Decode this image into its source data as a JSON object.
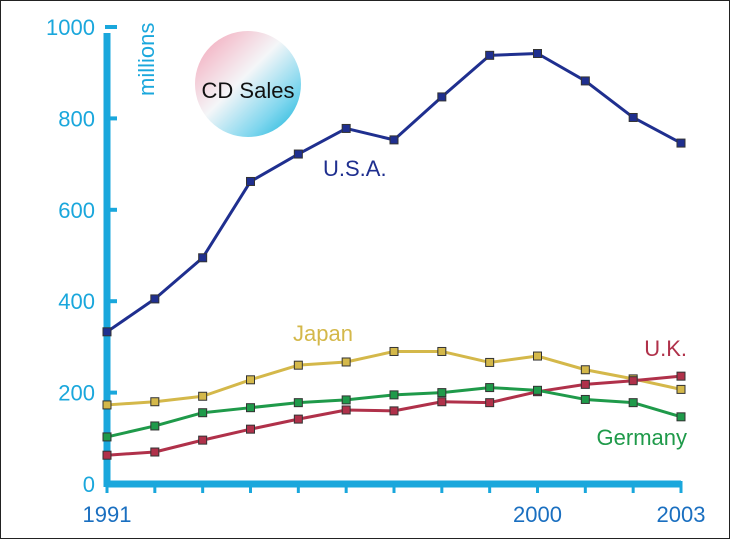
{
  "chart_data": {
    "type": "line",
    "title": "CD Sales",
    "ylabel": "millions",
    "xlabel": "",
    "x": [
      1991,
      1992,
      1993,
      1994,
      1995,
      1996,
      1997,
      1998,
      1999,
      2000,
      2001,
      2002,
      2003
    ],
    "xlim": [
      1991,
      2003
    ],
    "ylim": [
      0,
      1000
    ],
    "yticks": [
      "0",
      "200",
      "400",
      "600",
      "800",
      "1000"
    ],
    "xticks": [
      {
        "value": 1991,
        "label": "1991"
      },
      {
        "value": 2000,
        "label": "2000"
      },
      {
        "value": 2003,
        "label": "2003"
      }
    ],
    "grid": false,
    "series": [
      {
        "name": "U.S.A.",
        "color": "#1f2f8f",
        "values": [
          333,
          405,
          495,
          662,
          722,
          778,
          753,
          847,
          938,
          942,
          882,
          802,
          746
        ]
      },
      {
        "name": "Japan",
        "color": "#d4b84a",
        "values": [
          173,
          180,
          192,
          228,
          260,
          267,
          290,
          290,
          266,
          280,
          250,
          230,
          207
        ]
      },
      {
        "name": "U.K.",
        "color": "#b0314a",
        "values": [
          63,
          70,
          96,
          120,
          142,
          162,
          160,
          180,
          178,
          202,
          218,
          226,
          236
        ]
      },
      {
        "name": "Germany",
        "color": "#1f9a4a",
        "values": [
          103,
          127,
          156,
          167,
          178,
          184,
          195,
          200,
          211,
          205,
          185,
          178,
          147
        ]
      }
    ]
  }
}
